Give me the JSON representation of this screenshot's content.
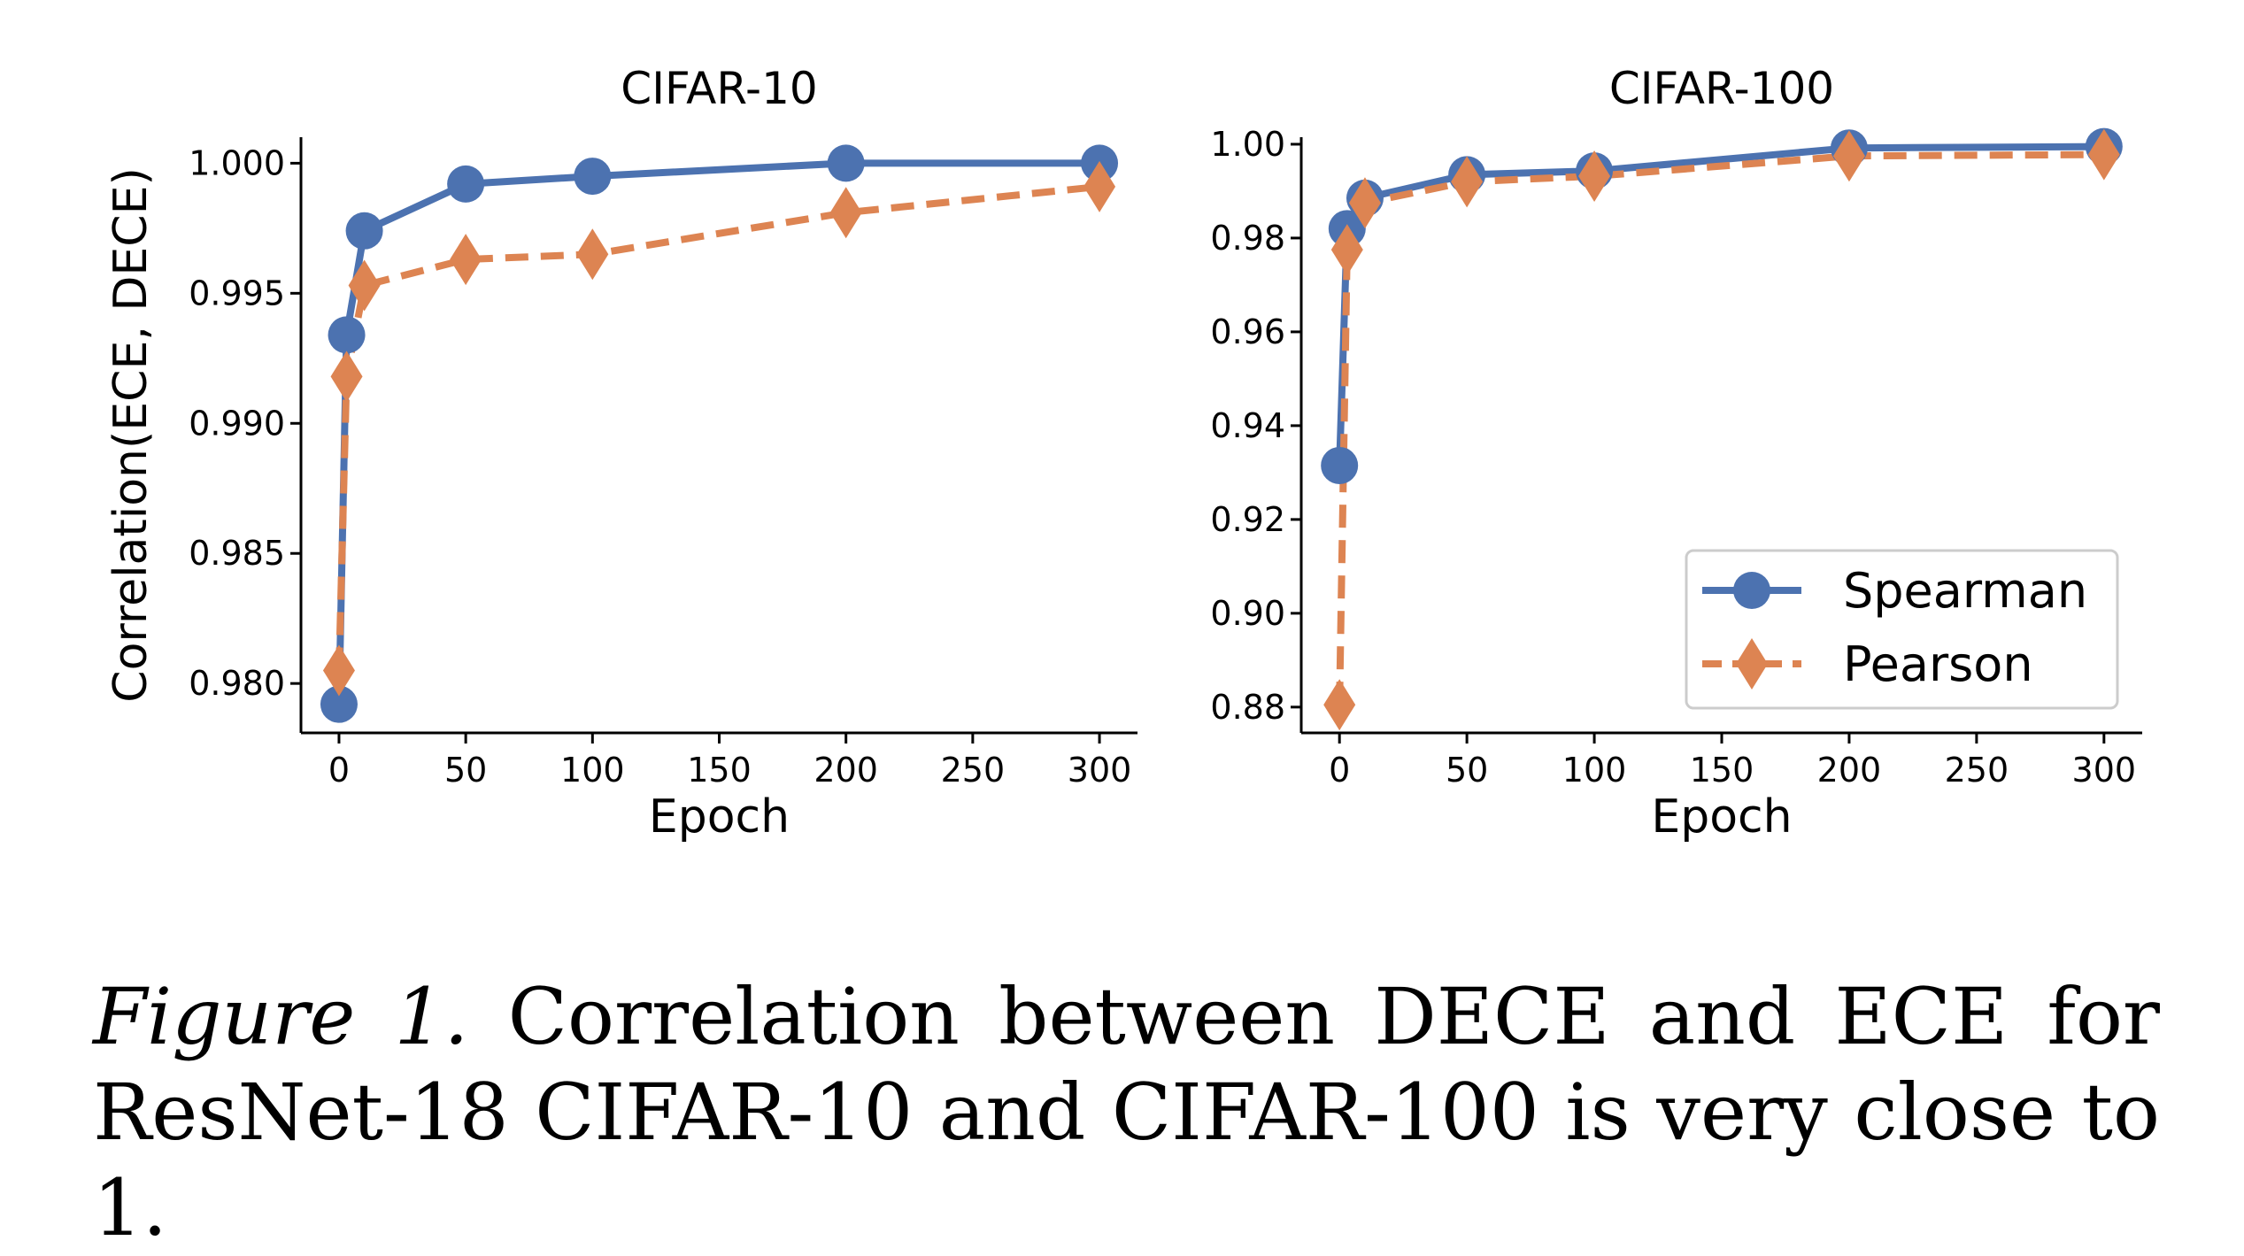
{
  "chart_data": [
    {
      "type": "line",
      "title": "CIFAR-10",
      "xlabel": "Epoch",
      "ylabel": "Correlation(ECE, DECE)",
      "xlim": [
        -15,
        315
      ],
      "ylim": [
        0.9781,
        1.001
      ],
      "xticks": [
        0,
        50,
        100,
        150,
        200,
        250,
        300
      ],
      "xtick_labels": [
        "0",
        "50",
        "100",
        "150",
        "200",
        "250",
        "300"
      ],
      "yticks": [
        0.98,
        0.985,
        0.99,
        0.995,
        1.0
      ],
      "ytick_labels": [
        "0.980",
        "0.985",
        "0.990",
        "0.995",
        "1.000"
      ],
      "x": [
        0,
        3,
        10,
        50,
        100,
        200,
        300
      ],
      "series": [
        {
          "name": "Spearman",
          "values": [
            0.9792,
            0.9934,
            0.9974,
            0.9992,
            0.9995,
            1.0,
            1.0
          ]
        },
        {
          "name": "Pearson",
          "values": [
            0.9805,
            0.9918,
            0.9953,
            0.9963,
            0.9965,
            0.9981,
            0.9991
          ]
        }
      ],
      "grid": false
    },
    {
      "type": "line",
      "title": "CIFAR-100",
      "xlabel": "Epoch",
      "ylabel": "",
      "xlim": [
        -15,
        315
      ],
      "ylim": [
        0.8745,
        1.0015
      ],
      "xticks": [
        0,
        50,
        100,
        150,
        200,
        250,
        300
      ],
      "xtick_labels": [
        "0",
        "50",
        "100",
        "150",
        "200",
        "250",
        "300"
      ],
      "yticks": [
        0.88,
        0.9,
        0.92,
        0.94,
        0.96,
        0.98,
        1.0
      ],
      "ytick_labels": [
        "0.88",
        "0.90",
        "0.92",
        "0.94",
        "0.96",
        "0.98",
        "1.00"
      ],
      "x": [
        0,
        3,
        10,
        50,
        100,
        200,
        300
      ],
      "series": [
        {
          "name": "Spearman",
          "values": [
            0.9315,
            0.982,
            0.9885,
            0.9935,
            0.9943,
            0.9992,
            0.9995
          ]
        },
        {
          "name": "Pearson",
          "values": [
            0.8805,
            0.9775,
            0.9875,
            0.992,
            0.9932,
            0.9975,
            0.9978
          ]
        }
      ],
      "legend": {
        "position": "lower-right",
        "entries": [
          "Spearman",
          "Pearson"
        ]
      },
      "grid": false
    }
  ],
  "colors": {
    "spearman": "#4c72b0",
    "pearson": "#dd8452",
    "axis": "#000000"
  },
  "caption": {
    "label": "Figure 1.",
    "text": " Correlation between DECE and ECE for ResNet-18 CIFAR-10 and CIFAR-100 is very close to 1."
  }
}
